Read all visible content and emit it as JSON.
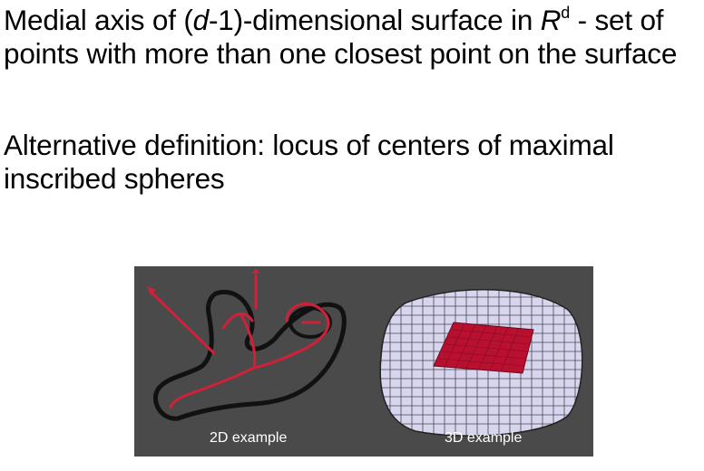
{
  "paragraph_1": {
    "text_a": "Medial axis of (",
    "italic_d": "d",
    "text_b": "-1)-dimensional surface in ",
    "italic_R": "R",
    "superscript": "d",
    "text_c": " - set of points with more than one closest point on the surface"
  },
  "paragraph_2": {
    "text": "Alternative definition: locus of centers of maximal inscribed spheres"
  },
  "figure": {
    "caption_2d": "2D example",
    "caption_3d": "3D example",
    "colors": {
      "background": "#4a4a4a",
      "outline": "#111111",
      "medial_axis": "#d0203a",
      "mesh": "#d8d6ef",
      "mesh_lines": "#222222",
      "sheet": "#b8102e"
    }
  }
}
